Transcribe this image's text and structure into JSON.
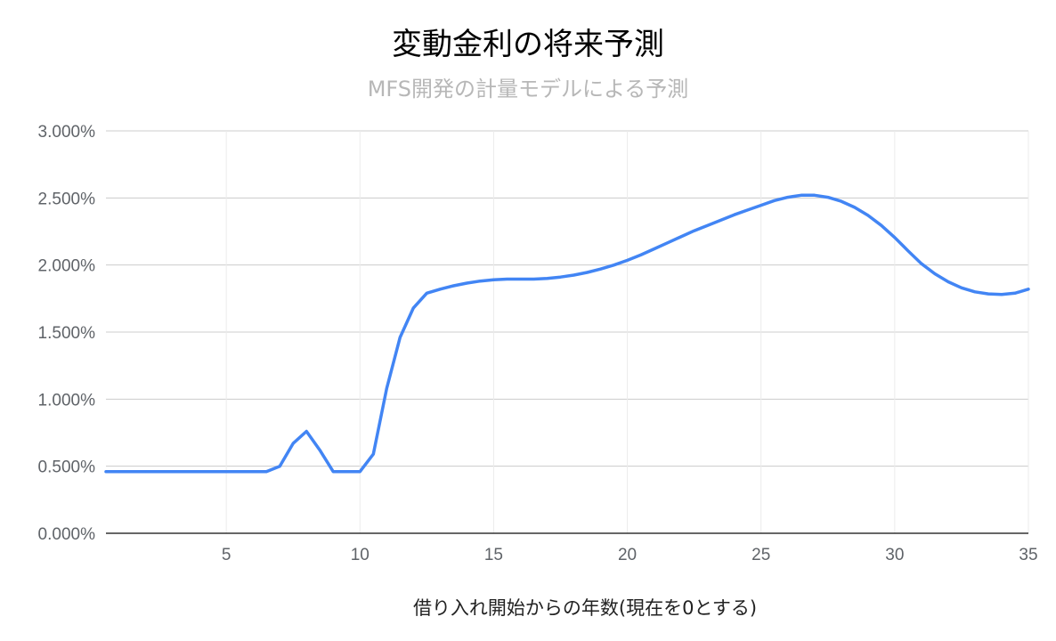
{
  "chart_data": {
    "type": "line",
    "title": "変動金利の将来予測",
    "subtitle": "MFS開発の計量モデルによる予測",
    "xlabel": "借り入れ開始からの年数(現在を0とする)",
    "ylabel": "",
    "xlim": [
      0.5,
      35
    ],
    "ylim": [
      0,
      3
    ],
    "x_ticks": [
      5,
      10,
      15,
      20,
      25,
      30,
      35
    ],
    "x_tick_labels": [
      "5",
      "10",
      "15",
      "20",
      "25",
      "30",
      "35"
    ],
    "y_ticks": [
      0,
      0.5,
      1.0,
      1.5,
      2.0,
      2.5,
      3.0
    ],
    "y_tick_labels": [
      "0.000%",
      "0.500%",
      "1.000%",
      "1.500%",
      "2.000%",
      "2.500%",
      "3.000%"
    ],
    "grid": true,
    "series": [
      {
        "color": "#4285f4",
        "points": [
          [
            0.5,
            0.46
          ],
          [
            1,
            0.46
          ],
          [
            2,
            0.46
          ],
          [
            3,
            0.46
          ],
          [
            4,
            0.46
          ],
          [
            5,
            0.46
          ],
          [
            6,
            0.46
          ],
          [
            6.5,
            0.46
          ],
          [
            7,
            0.5
          ],
          [
            7.5,
            0.67
          ],
          [
            8,
            0.76
          ],
          [
            8.5,
            0.62
          ],
          [
            9,
            0.46
          ],
          [
            9.5,
            0.46
          ],
          [
            10,
            0.46
          ],
          [
            10.5,
            0.59
          ],
          [
            11,
            1.08
          ],
          [
            11.5,
            1.46
          ],
          [
            12,
            1.68
          ],
          [
            12.5,
            1.79
          ],
          [
            13,
            1.82
          ],
          [
            13.5,
            1.845
          ],
          [
            14,
            1.865
          ],
          [
            14.5,
            1.88
          ],
          [
            15,
            1.89
          ],
          [
            15.5,
            1.895
          ],
          [
            16,
            1.895
          ],
          [
            16.5,
            1.895
          ],
          [
            17,
            1.9
          ],
          [
            17.5,
            1.91
          ],
          [
            18,
            1.925
          ],
          [
            18.5,
            1.945
          ],
          [
            19,
            1.97
          ],
          [
            19.5,
            2.0
          ],
          [
            20,
            2.035
          ],
          [
            20.5,
            2.075
          ],
          [
            21,
            2.12
          ],
          [
            21.5,
            2.165
          ],
          [
            22,
            2.21
          ],
          [
            22.5,
            2.255
          ],
          [
            23,
            2.295
          ],
          [
            23.5,
            2.335
          ],
          [
            24,
            2.375
          ],
          [
            24.5,
            2.41
          ],
          [
            25,
            2.445
          ],
          [
            25.5,
            2.48
          ],
          [
            26,
            2.505
          ],
          [
            26.5,
            2.52
          ],
          [
            27,
            2.52
          ],
          [
            27.5,
            2.505
          ],
          [
            28,
            2.475
          ],
          [
            28.5,
            2.43
          ],
          [
            29,
            2.37
          ],
          [
            29.5,
            2.295
          ],
          [
            30,
            2.205
          ],
          [
            30.5,
            2.105
          ],
          [
            31,
            2.01
          ],
          [
            31.5,
            1.935
          ],
          [
            32,
            1.875
          ],
          [
            32.5,
            1.83
          ],
          [
            33,
            1.8
          ],
          [
            33.5,
            1.785
          ],
          [
            34,
            1.78
          ],
          [
            34.5,
            1.79
          ],
          [
            35,
            1.82
          ]
        ]
      }
    ]
  }
}
